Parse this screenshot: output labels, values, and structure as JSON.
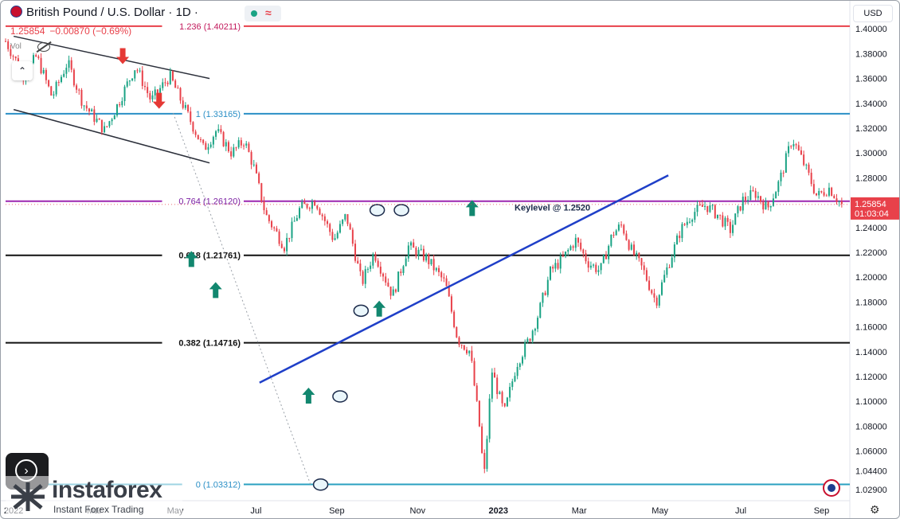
{
  "header": {
    "symbol_title": "British Pound / U.S. Dollar · 1D ·",
    "last_price": "1.25854",
    "change": "−0.00870 (−0.69%)",
    "vol_label": "Vol",
    "currency_button": "USD"
  },
  "price_badge": {
    "price": "1.25854",
    "countdown": "01:03:04",
    "color": "#e8414a"
  },
  "watermark": {
    "name": "instaforex",
    "tagline": "Instant Forex Trading"
  },
  "colors": {
    "up": "#1aa384",
    "down": "#e8414a",
    "trend": "#1f3fc8",
    "arrow_up": "#12876f",
    "arrow_down": "#e53935"
  },
  "chart_data": {
    "type": "candlestick",
    "title": "British Pound / U.S. Dollar · 1D",
    "ylim": [
      1.02,
      1.42
    ],
    "y_ticks": [
      "1.40000",
      "1.38000",
      "1.36000",
      "1.34000",
      "1.32000",
      "1.30000",
      "1.28000",
      "1.26000",
      "1.24000",
      "1.22000",
      "1.20000",
      "1.18000",
      "1.16000",
      "1.14000",
      "1.12000",
      "1.10000",
      "1.08000",
      "1.06000",
      "1.04400",
      "1.02900"
    ],
    "x_ticks": [
      "2022",
      "Mar",
      "May",
      "Jul",
      "Sep",
      "Nov",
      "2023",
      "Mar",
      "May",
      "Jul",
      "Sep"
    ],
    "x_tick_months": [
      0,
      2,
      4,
      6,
      8,
      10,
      12,
      14,
      16,
      18,
      20
    ],
    "x_range_months": [
      -0.2,
      20.7
    ],
    "fib_levels": [
      {
        "label": "1.236 (1.40211)",
        "value": 1.40211,
        "color": "#e8414a",
        "label_color": "#c2185b"
      },
      {
        "label": "1 (1.33165)",
        "value": 1.33165,
        "color": "#2a8fc6",
        "label_color": "#2a8fc6"
      },
      {
        "label": "0.764 (1.26120)",
        "value": 1.2612,
        "color": "#9c27b0",
        "label_color": "#7b1fa2"
      },
      {
        "label": "0.618 (1.21761)",
        "value": 1.21761,
        "color": "#111111",
        "label_color": "#111111"
      },
      {
        "label": "0.382 (1.14716)",
        "value": 1.14716,
        "color": "#111111",
        "label_color": "#111111"
      },
      {
        "label": "0 (1.03312)",
        "value": 1.03312,
        "color": "#2aa0c0",
        "label_color": "#2a8fc6"
      }
    ],
    "annotations": [
      {
        "text": "Keylevel @ 1.2520",
        "x": 12.4,
        "y": 1.2535
      }
    ],
    "price_path": [
      [
        0.0,
        1.39
      ],
      [
        0.6,
        1.362
      ],
      [
        1.0,
        1.378
      ],
      [
        1.5,
        1.345
      ],
      [
        2.0,
        1.373
      ],
      [
        2.5,
        1.34
      ],
      [
        3.2,
        1.318
      ],
      [
        3.6,
        1.338
      ],
      [
        4.2,
        1.37
      ],
      [
        4.7,
        1.342
      ],
      [
        5.3,
        1.362
      ],
      [
        5.8,
        1.335
      ],
      [
        6.4,
        1.303
      ],
      [
        6.8,
        1.318
      ],
      [
        7.3,
        1.3
      ],
      [
        7.7,
        1.31
      ],
      [
        8.0,
        1.29
      ],
      [
        8.4,
        1.25
      ],
      [
        9.0,
        1.225
      ],
      [
        9.5,
        1.255
      ],
      [
        10.0,
        1.262
      ],
      [
        10.6,
        1.23
      ],
      [
        11.0,
        1.25
      ],
      [
        11.5,
        1.195
      ],
      [
        11.9,
        1.22
      ],
      [
        12.5,
        1.185
      ],
      [
        13.0,
        1.225
      ],
      [
        13.6,
        1.215
      ],
      [
        14.2,
        1.195
      ],
      [
        14.6,
        1.15
      ],
      [
        15.0,
        1.14
      ],
      [
        15.3,
        1.08
      ],
      [
        15.45,
        1.038
      ],
      [
        15.7,
        1.125
      ],
      [
        16.1,
        1.09
      ],
      [
        16.5,
        1.13
      ],
      [
        16.9,
        1.15
      ],
      [
        17.2,
        1.17
      ],
      [
        17.6,
        1.205
      ],
      [
        18.0,
        1.215
      ],
      [
        18.4,
        1.23
      ],
      [
        18.8,
        1.212
      ],
      [
        19.2,
        1.205
      ],
      [
        19.6,
        1.235
      ],
      [
        19.9,
        1.242
      ],
      [
        20.2,
        1.222
      ],
      [
        20.6,
        1.205
      ],
      [
        21.0,
        1.18
      ],
      [
        21.4,
        1.21
      ],
      [
        21.8,
        1.238
      ],
      [
        22.2,
        1.252
      ],
      [
        22.6,
        1.258
      ],
      [
        23.0,
        1.25
      ],
      [
        23.4,
        1.238
      ],
      [
        23.8,
        1.262
      ],
      [
        24.2,
        1.268
      ],
      [
        24.6,
        1.255
      ],
      [
        25.0,
        1.278
      ],
      [
        25.4,
        1.312
      ],
      [
        25.8,
        1.29
      ],
      [
        26.2,
        1.265
      ],
      [
        26.6,
        1.272
      ],
      [
        27.0,
        1.258
      ]
    ],
    "channel_lines": [
      {
        "from": [
          0.0,
          1.394
        ],
        "to": [
          4.85,
          1.36
        ]
      },
      {
        "from": [
          0.0,
          1.335
        ],
        "to": [
          4.85,
          1.292
        ]
      }
    ],
    "trendline": {
      "from": [
        8.2,
        1.115
      ],
      "to": [
        21.4,
        1.282
      ]
    },
    "dotted_fib_line": {
      "from": [
        3.95,
        1.332
      ],
      "to": [
        7.35,
        1.033
      ]
    },
    "arrows_up": [
      [
        5.05,
        1.212
      ],
      [
        5.68,
        1.188
      ],
      [
        8.0,
        1.1
      ],
      [
        10.4,
        1.173
      ],
      [
        12.95,
        1.254
      ]
    ],
    "arrows_down": [
      [
        3.05,
        1.378
      ],
      [
        4.1,
        1.341
      ]
    ],
    "ellipses": [
      [
        7.6,
        1.033
      ],
      [
        8.08,
        1.104
      ],
      [
        8.6,
        1.173
      ],
      [
        9.0,
        1.254
      ],
      [
        9.6,
        1.254
      ]
    ]
  }
}
